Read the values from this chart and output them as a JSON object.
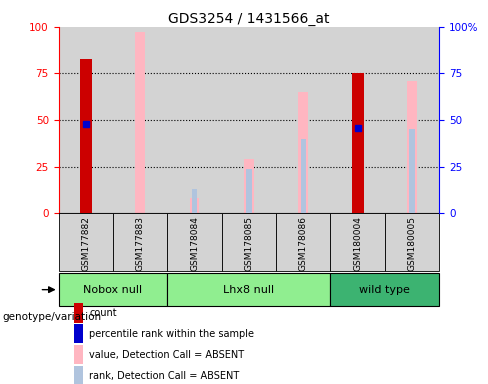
{
  "title": "GDS3254 / 1431566_at",
  "samples": [
    "GSM177882",
    "GSM177883",
    "GSM178084",
    "GSM178085",
    "GSM178086",
    "GSM180004",
    "GSM180005"
  ],
  "count_values": [
    83,
    0,
    0,
    0,
    0,
    75,
    0
  ],
  "percentile_rank": [
    48,
    0,
    0,
    0,
    0,
    46,
    0
  ],
  "value_absent": [
    0,
    97,
    8,
    29,
    65,
    0,
    71
  ],
  "rank_absent": [
    0,
    0,
    13,
    24,
    40,
    0,
    45
  ],
  "group_info": [
    {
      "label": "Nobox null",
      "start": 0,
      "end": 1,
      "color": "#90EE90"
    },
    {
      "label": "Lhx8 null",
      "start": 2,
      "end": 4,
      "color": "#90EE90"
    },
    {
      "label": "wild type",
      "start": 5,
      "end": 6,
      "color": "#3CB371"
    }
  ],
  "ylim": [
    0,
    100
  ],
  "y_ticks": [
    0,
    25,
    50,
    75,
    100
  ],
  "count_color": "#CC0000",
  "percentile_color": "#0000CD",
  "value_absent_color": "#FFB6C1",
  "rank_absent_color": "#B0C4DE",
  "bg_color": "#D3D3D3",
  "legend_labels": [
    "count",
    "percentile rank within the sample",
    "value, Detection Call = ABSENT",
    "rank, Detection Call = ABSENT"
  ],
  "legend_colors": [
    "#CC0000",
    "#0000CD",
    "#FFB6C1",
    "#B0C4DE"
  ]
}
